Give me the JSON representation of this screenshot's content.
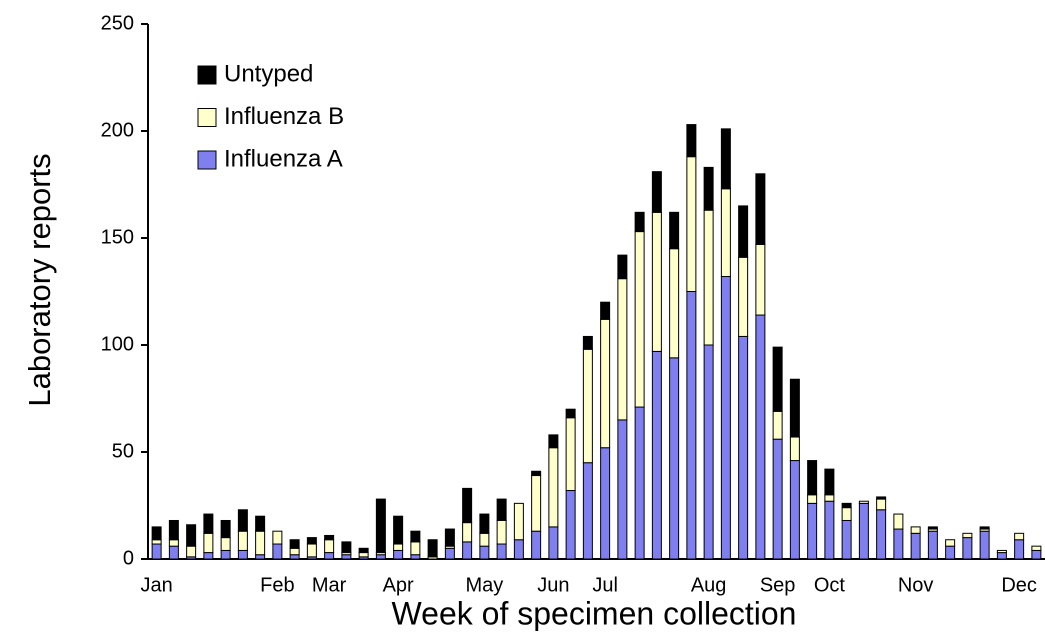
{
  "chart_data": {
    "type": "stacked_bar",
    "x_label": "Week of specimen collection",
    "y_label": "Laboratory reports",
    "categories": [
      "Jan",
      null,
      null,
      null,
      null,
      null,
      null,
      "Feb",
      null,
      null,
      "Mar",
      null,
      null,
      null,
      "Apr",
      null,
      null,
      null,
      null,
      "May",
      null,
      null,
      null,
      "Jun",
      null,
      null,
      "Jul",
      null,
      null,
      null,
      null,
      null,
      "Aug",
      null,
      null,
      null,
      "Sep",
      null,
      null,
      "Oct",
      null,
      null,
      null,
      null,
      "Nov",
      null,
      null,
      null,
      null,
      null,
      "Dec",
      null
    ],
    "series": [
      {
        "name": "Influenza A",
        "color": "#7f7ff0",
        "values": [
          7,
          6,
          1,
          3,
          4,
          4,
          2,
          7,
          2,
          1,
          3,
          2,
          1,
          2,
          4,
          2,
          0,
          5,
          8,
          6,
          7,
          9,
          13,
          15,
          32,
          45,
          52,
          65,
          71,
          97,
          94,
          125,
          100,
          132,
          104,
          114,
          56,
          46,
          26,
          27,
          18,
          26,
          23,
          14,
          12,
          13,
          6,
          10,
          13,
          3,
          9,
          4
        ]
      },
      {
        "name": "Influenza B",
        "color": "#ffffcc",
        "values": [
          2,
          3,
          5,
          9,
          6,
          9,
          11,
          6,
          3,
          6,
          6,
          1,
          2,
          1,
          3,
          6,
          1,
          1,
          9,
          6,
          11,
          17,
          26,
          37,
          34,
          53,
          60,
          66,
          82,
          65,
          51,
          63,
          63,
          41,
          37,
          33,
          13,
          11,
          4,
          3,
          6,
          1,
          5,
          7,
          3,
          1,
          3,
          2,
          1,
          1,
          3,
          2
        ]
      },
      {
        "name": "Untyped",
        "color": "#000000",
        "values": [
          6,
          9,
          10,
          9,
          8,
          10,
          7,
          0,
          4,
          3,
          2,
          5,
          2,
          25,
          13,
          5,
          8,
          8,
          16,
          9,
          10,
          0,
          2,
          6,
          4,
          6,
          8,
          11,
          9,
          19,
          17,
          15,
          20,
          28,
          24,
          33,
          30,
          27,
          16,
          12,
          2,
          0,
          1,
          0,
          0,
          1,
          0,
          0,
          1,
          0,
          0,
          0
        ]
      }
    ],
    "ylim": [
      0,
      250
    ],
    "yticks": [
      0,
      50,
      100,
      150,
      200,
      250
    ],
    "legend": "upper-left"
  }
}
